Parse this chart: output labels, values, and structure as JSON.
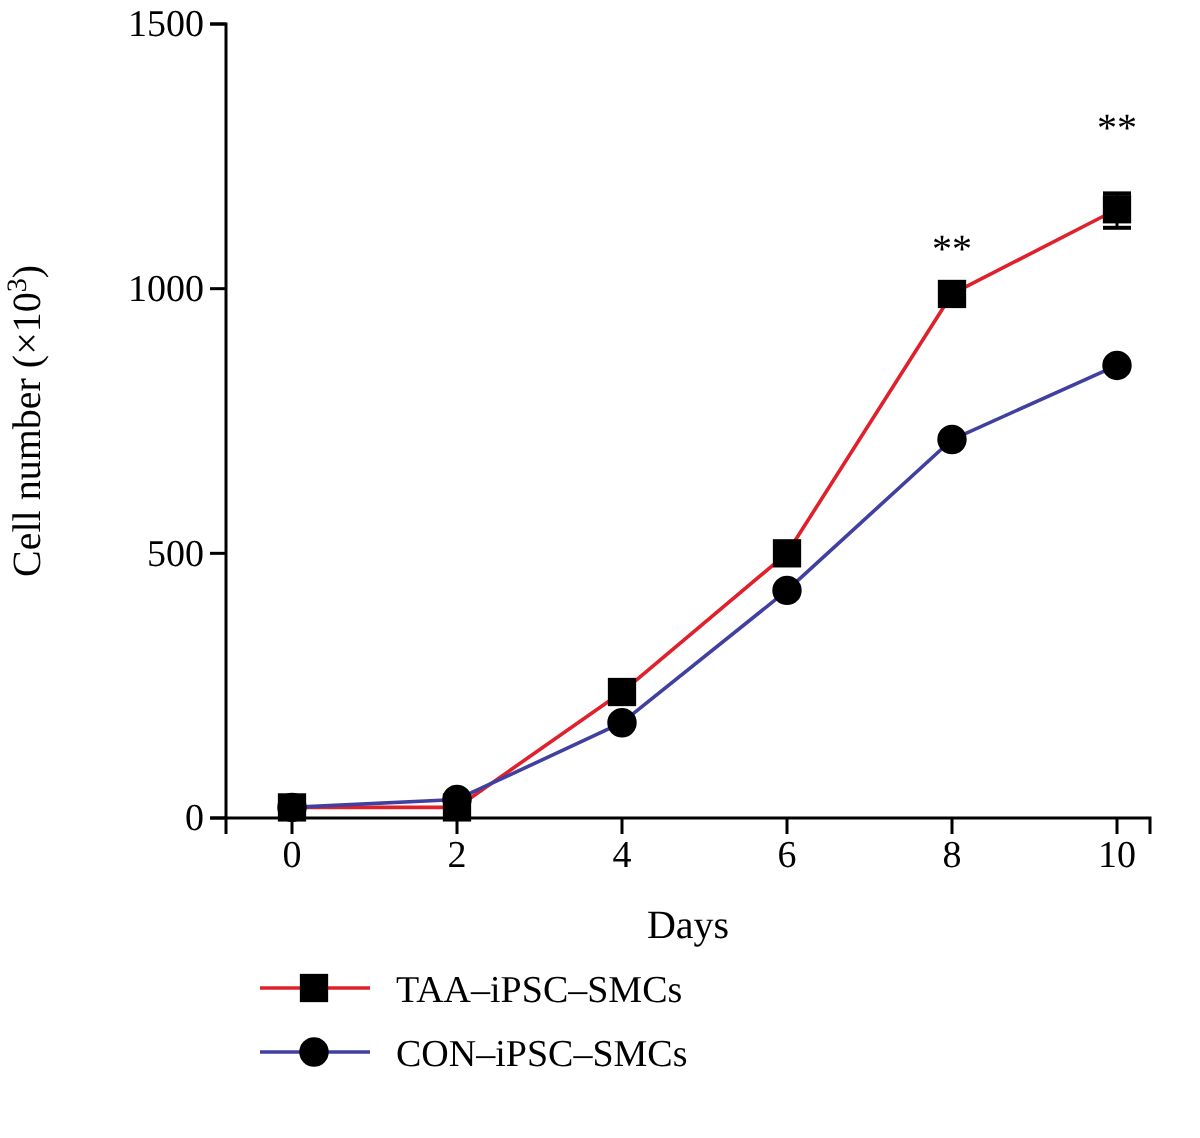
{
  "chart_data": {
    "type": "line",
    "xlabel": "Days",
    "ylabel": "Cell number (×10$^{3}$)",
    "x": [
      0,
      2,
      4,
      6,
      8,
      10
    ],
    "xlim": [
      -0.8,
      10.4
    ],
    "xticks": [
      0,
      2,
      4,
      6,
      8,
      10
    ],
    "ylim": [
      0,
      1500
    ],
    "yticks": [
      0,
      500,
      1000,
      1500
    ],
    "grid": false,
    "legend": "bottom",
    "series": [
      {
        "name": "TAA–iPSC–SMCs",
        "color": "#e0202a",
        "marker": "square",
        "values": [
          20,
          20,
          238,
          500,
          990,
          1150
        ],
        "errors": [
          null,
          null,
          null,
          null,
          null,
          [
            1115,
            1180
          ]
        ]
      },
      {
        "name": "CON–iPSC–SMCs",
        "color": "#4040a0",
        "marker": "circle",
        "values": [
          20,
          35,
          180,
          430,
          715,
          855
        ]
      }
    ],
    "annotations": [
      {
        "text": "**",
        "x": 8,
        "y": 990
      },
      {
        "text": "**",
        "x": 10,
        "y": 1150
      }
    ]
  }
}
